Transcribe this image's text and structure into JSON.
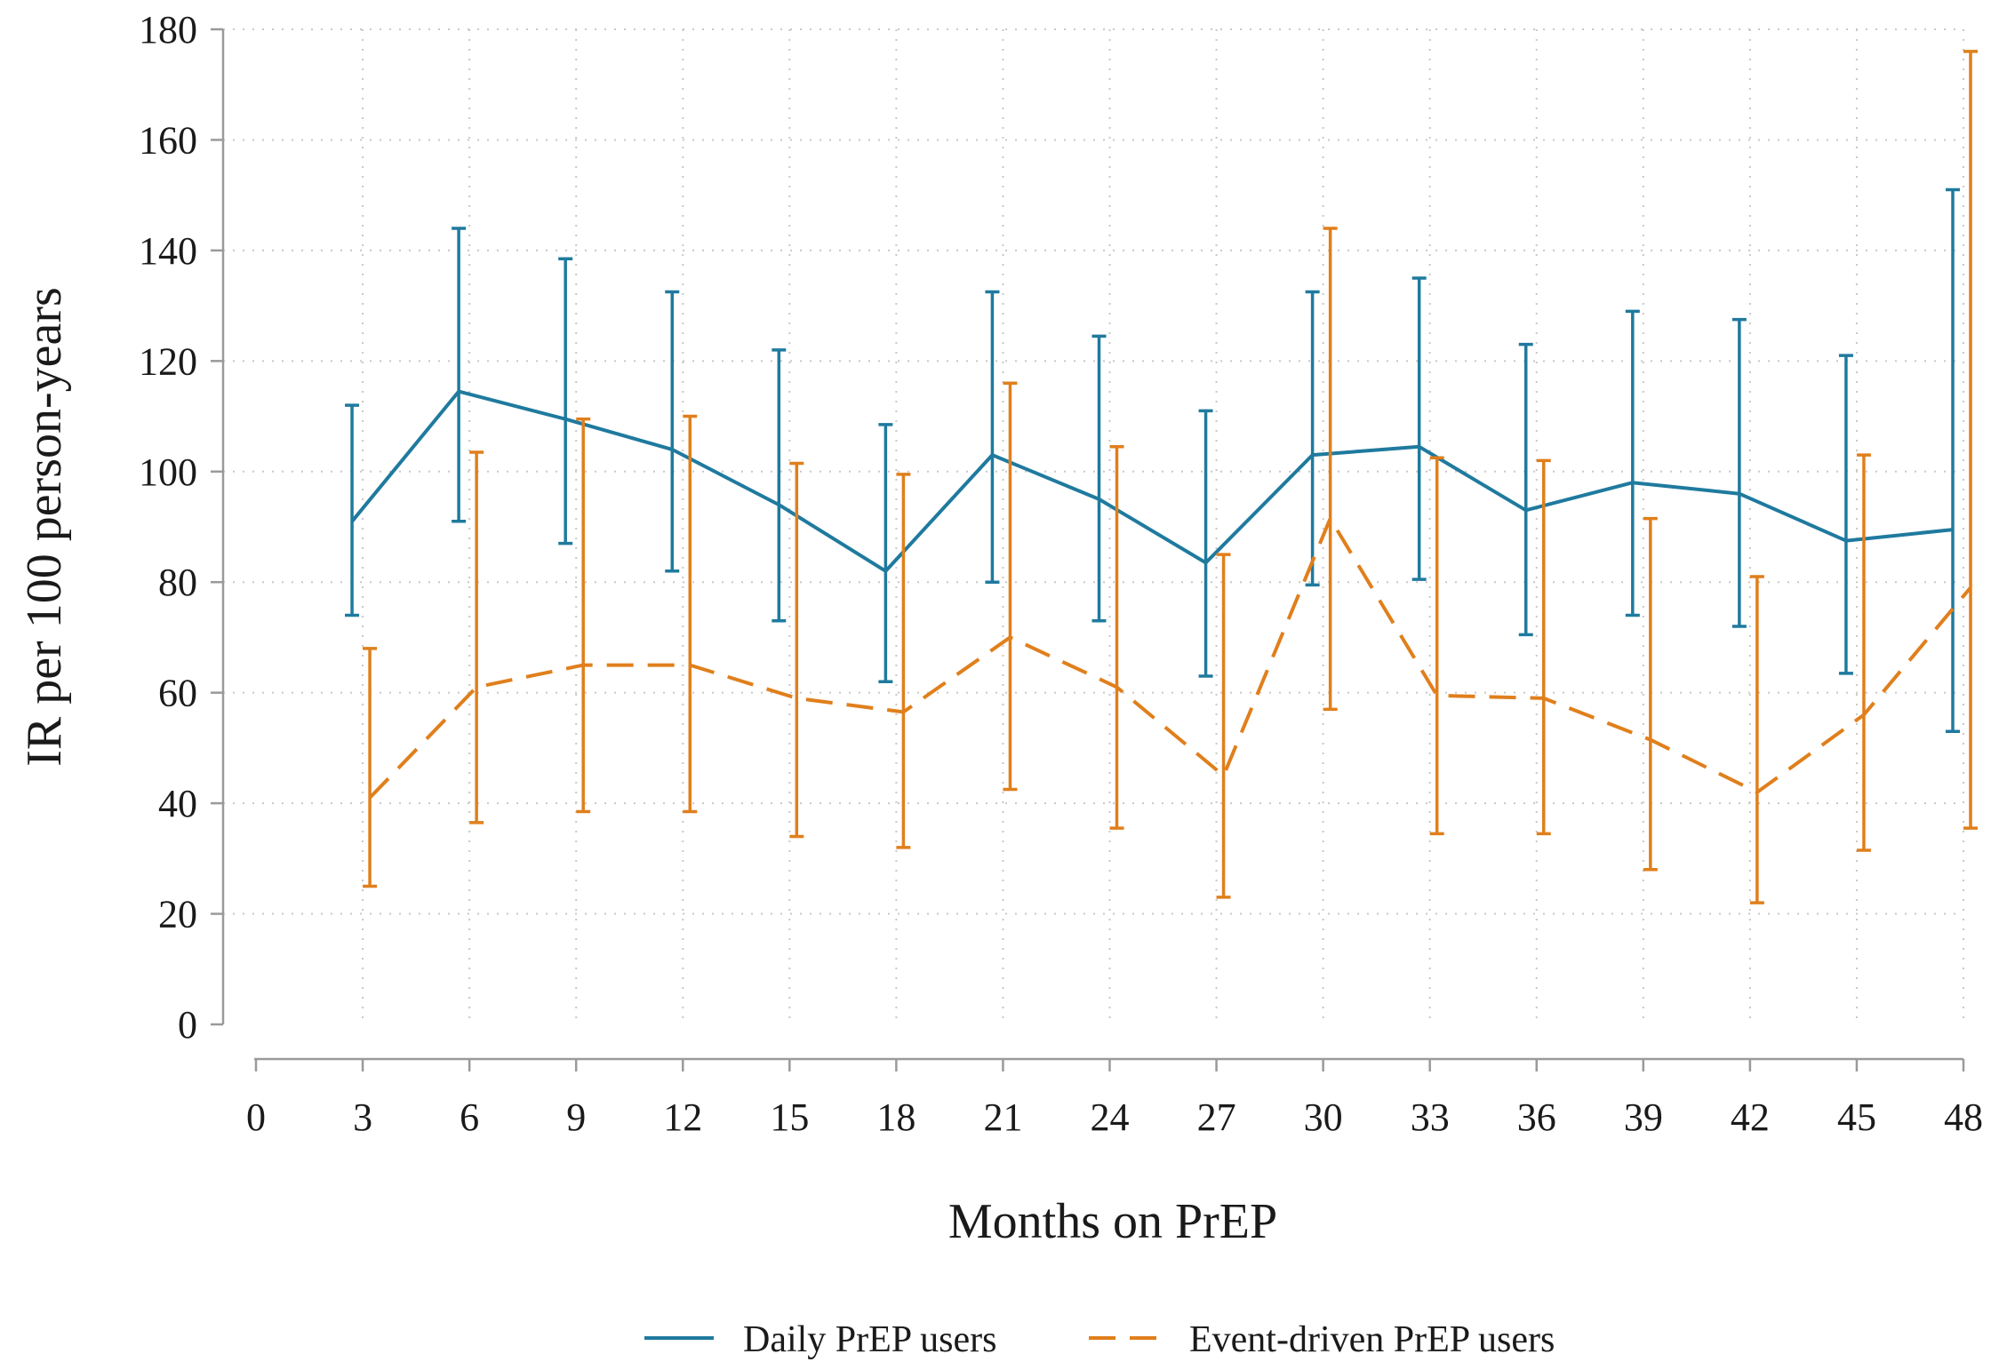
{
  "chart_data": {
    "type": "line",
    "xlabel": "Months on PrEP",
    "ylabel": "IR per 100 person-years",
    "xlim": [
      0,
      48
    ],
    "ylim": [
      0,
      180
    ],
    "xticks": [
      0,
      3,
      6,
      9,
      12,
      15,
      18,
      21,
      24,
      27,
      30,
      33,
      36,
      39,
      42,
      45,
      48
    ],
    "yticks": [
      0,
      20,
      40,
      60,
      80,
      100,
      120,
      140,
      160,
      180
    ],
    "grid": true,
    "legend_position": "bottom",
    "series": [
      {
        "name": "Daily PrEP users",
        "color": "#1f7a9e",
        "line_style": "solid",
        "x": [
          2.7,
          5.7,
          8.7,
          11.7,
          14.7,
          17.7,
          20.7,
          23.7,
          26.7,
          29.7,
          32.7,
          35.7,
          38.7,
          41.7,
          44.7,
          47.7
        ],
        "values": [
          91,
          114.5,
          109.5,
          104,
          94,
          82,
          103,
          95,
          83.5,
          103,
          104.5,
          93,
          98,
          96,
          87.5,
          89.5
        ],
        "lower": [
          74,
          91,
          87,
          82,
          73,
          62,
          80,
          73,
          63,
          79.5,
          80.5,
          70.5,
          74,
          72,
          63.5,
          53
        ],
        "upper": [
          112,
          144,
          138.5,
          132.5,
          122,
          108.5,
          132.5,
          124.5,
          111,
          132.5,
          135,
          123,
          129,
          127.5,
          121,
          151
        ]
      },
      {
        "name": "Event-driven PrEP users",
        "color": "#e07f1c",
        "line_style": "dashed",
        "x": [
          3.2,
          6.2,
          9.2,
          12.2,
          15.2,
          18.2,
          21.2,
          24.2,
          27.2,
          30.2,
          33.2,
          36.2,
          39.2,
          42.2,
          45.2,
          48.2
        ],
        "values": [
          41,
          61,
          65,
          65,
          59,
          56.5,
          70,
          61,
          45,
          91.5,
          59.5,
          59,
          51.5,
          42,
          56,
          79
        ],
        "lower": [
          25,
          36.5,
          38.5,
          38.5,
          34,
          32,
          42.5,
          35.5,
          23,
          57,
          34.5,
          34.5,
          28,
          22,
          31.5,
          35.5
        ],
        "upper": [
          68,
          103.5,
          109.5,
          110,
          101.5,
          99.5,
          116,
          104.5,
          85,
          144,
          102.5,
          102,
          91.5,
          81,
          103,
          176
        ]
      }
    ]
  }
}
